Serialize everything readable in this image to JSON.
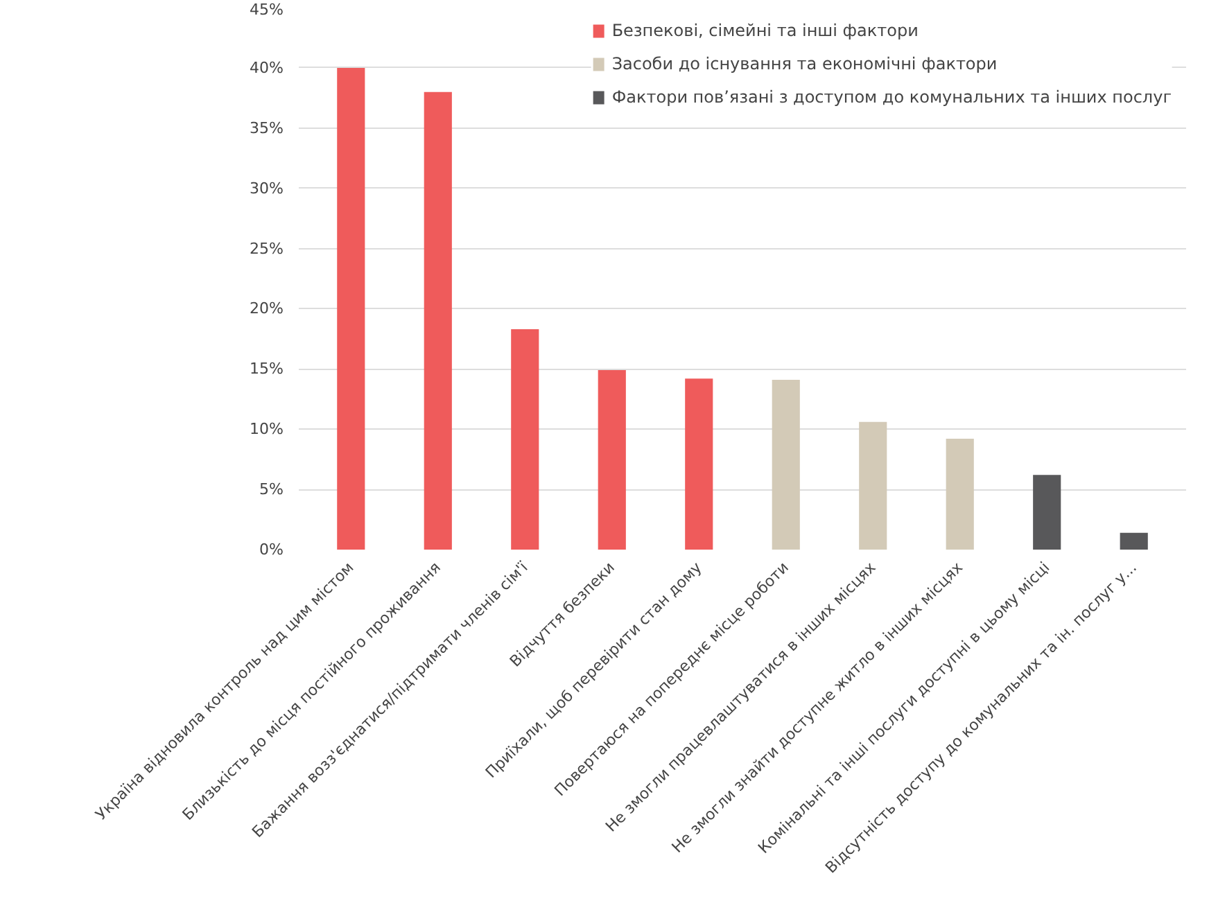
{
  "chart_data": {
    "type": "bar",
    "categories": [
      "Україна відновила контроль над цим містом",
      "Близькість до місця постійного проживання",
      "Бажання возз'єднатися/підтримати членів сім'ї",
      "Відчуття безпеки",
      "Приїхали, щоб перевірити стан дому",
      "Повертаюся на попереднє місце роботи",
      "Не змогли працевлаштуватися в інших місцях",
      "Не змогли знайти доступне житло в інших місцях",
      "Комінальні та інші послуги доступні в цьому місці",
      "Відсутність доступу до комунальних та ін. послуг у..."
    ],
    "series": [
      {
        "name": "Безпекові, сімейні та інші фактори",
        "color": "#ef5b5b",
        "values": [
          40,
          38,
          18.3,
          14.9,
          14.2,
          null,
          null,
          null,
          null,
          null
        ]
      },
      {
        "name": "Засоби до існування та економічні фактори",
        "color": "#d3cab7",
        "values": [
          null,
          null,
          null,
          null,
          null,
          14.1,
          10.6,
          9.2,
          null,
          null
        ]
      },
      {
        "name": "Фактори пов’язані з доступом до комунальних та інших послуг",
        "color": "#58585a",
        "values": [
          null,
          null,
          null,
          null,
          null,
          null,
          null,
          null,
          6.2,
          1.4
        ]
      }
    ],
    "ylim": [
      0,
      45
    ],
    "yticks": [
      {
        "value": 0,
        "label": "0%"
      },
      {
        "value": 5,
        "label": "5%"
      },
      {
        "value": 10,
        "label": "10%"
      },
      {
        "value": 15,
        "label": "15%"
      },
      {
        "value": 20,
        "label": "20%"
      },
      {
        "value": 25,
        "label": "25%"
      },
      {
        "value": 30,
        "label": "30%"
      },
      {
        "value": 35,
        "label": "35%"
      },
      {
        "value": 40,
        "label": "40%"
      },
      {
        "value": 45,
        "label": "45%"
      }
    ],
    "grid": "y",
    "legend": "top right"
  }
}
